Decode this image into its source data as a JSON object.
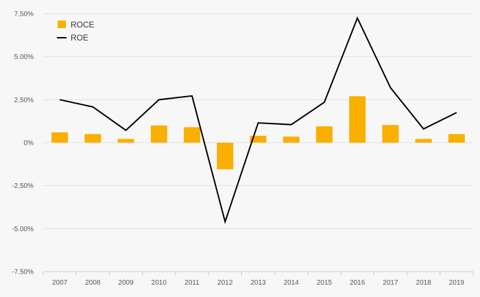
{
  "chart_data": {
    "type": "bar",
    "categories": [
      "2007",
      "2008",
      "2009",
      "2010",
      "2011",
      "2012",
      "2013",
      "2014",
      "2015",
      "2016",
      "2017",
      "2018",
      "2019"
    ],
    "series": [
      {
        "name": "ROCE",
        "kind": "bar",
        "color": "#f9b000",
        "values": [
          0.6,
          0.5,
          0.22,
          1.0,
          0.9,
          -1.55,
          0.4,
          0.35,
          0.95,
          2.7,
          1.03,
          0.22,
          0.5
        ]
      },
      {
        "name": "ROE",
        "kind": "line",
        "color": "#000000",
        "values": [
          2.5,
          2.08,
          0.72,
          2.5,
          2.72,
          -4.6,
          1.15,
          1.05,
          2.35,
          7.25,
          3.2,
          0.8,
          1.75
        ]
      }
    ],
    "ylim": [
      -7.5,
      7.5
    ],
    "yticks": [
      7.5,
      5.0,
      2.5,
      0,
      -2.5,
      -5.0,
      -7.5
    ],
    "ytick_labels": [
      "7.50%",
      "5.00%",
      "2.50%",
      "0%",
      "-2.50%",
      "-5.00%",
      "-7.50%"
    ],
    "grid": true,
    "legend_position": "top-left"
  }
}
